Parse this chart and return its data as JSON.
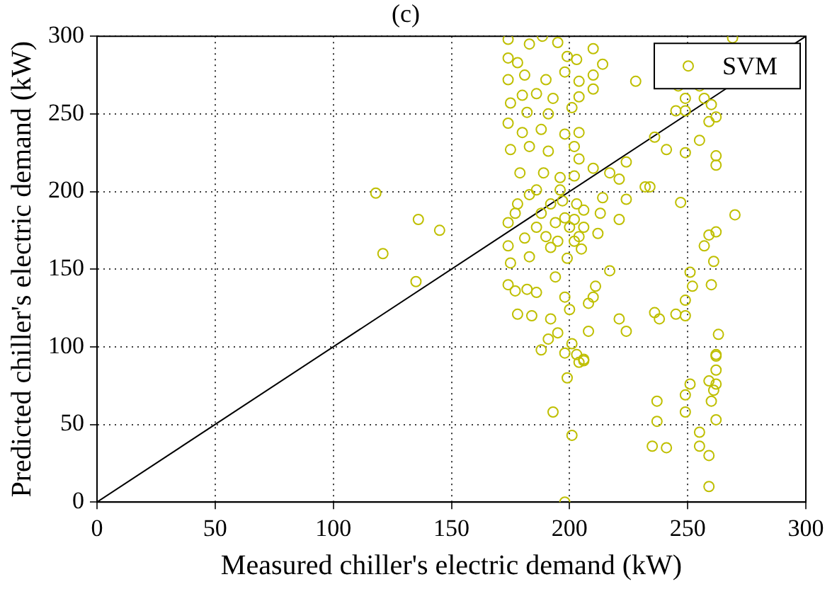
{
  "chart_data": {
    "type": "scatter",
    "title": "(c)",
    "xlabel": "Measured chiller's electric demand (kW)",
    "ylabel": "Predicted chiller's electric demand (kW)",
    "xlim": [
      0,
      300
    ],
    "ylim": [
      0,
      300
    ],
    "xticks": [
      0,
      50,
      100,
      150,
      200,
      250,
      300
    ],
    "yticks": [
      0,
      50,
      100,
      150,
      200,
      250,
      300
    ],
    "grid": true,
    "legend": "top right",
    "series": [
      {
        "type": "scatter",
        "name": "SVM",
        "color": "#bfbf00",
        "marker": "circle",
        "x": [
          174,
          188.5,
          195,
          183,
          199,
          210,
          214,
          203,
          269,
          228,
          246,
          255,
          174,
          178,
          174,
          181,
          190,
          198,
          210,
          204,
          180,
          186,
          193,
          204,
          210,
          175,
          182,
          191,
          201,
          249,
          257,
          245,
          249,
          260,
          262,
          259,
          174,
          180,
          188,
          198,
          204,
          236,
          255,
          241,
          249,
          262,
          262,
          175,
          183,
          191,
          202,
          204,
          210,
          224,
          217,
          221,
          234,
          179,
          189,
          196,
          202,
          118,
          136,
          145,
          121,
          135,
          270,
          247,
          232,
          214,
          224,
          221,
          213,
          262,
          259,
          257,
          261,
          251,
          252,
          260,
          249,
          217,
          211,
          210,
          208,
          221,
          224,
          236,
          238,
          245,
          249,
          263,
          262,
          208,
          199,
          200,
          198,
          194,
          186,
          182,
          177,
          174,
          178,
          184,
          192,
          195,
          191,
          188,
          201,
          198,
          203,
          206,
          204,
          174,
          178,
          183,
          188,
          192,
          196,
          202,
          206,
          204,
          174,
          181,
          186,
          190,
          194,
          198,
          200,
          175,
          183,
          192,
          195,
          205,
          212,
          202,
          177,
          186,
          203,
          197,
          206,
          199,
          193,
          201,
          198,
          237,
          237,
          235,
          241,
          251,
          249,
          249,
          255,
          255,
          259,
          259,
          262,
          260,
          261,
          259,
          262,
          262,
          262,
          206
        ],
        "values": [
          298,
          300,
          296,
          295,
          287,
          292,
          282,
          285,
          299,
          271,
          268,
          268,
          286,
          283,
          272,
          275,
          272,
          277,
          275,
          271,
          262,
          263,
          260,
          261,
          266,
          257,
          251,
          250,
          254,
          260,
          260,
          252,
          252,
          256,
          248,
          245,
          244,
          238,
          240,
          237,
          238,
          235,
          233,
          227,
          225,
          223,
          217,
          227,
          229,
          226,
          229,
          221,
          215,
          219,
          212,
          208,
          203,
          212,
          212,
          209,
          210,
          199,
          182,
          175,
          160,
          142,
          185,
          193,
          203,
          196,
          195,
          182,
          186,
          174,
          172,
          165,
          155,
          148,
          139,
          140,
          130,
          149,
          139,
          132,
          128,
          118,
          110,
          122,
          118,
          121,
          120,
          108,
          94,
          110,
          157,
          124,
          132,
          145,
          135,
          137,
          136,
          140,
          121,
          120,
          118,
          109,
          105,
          98,
          102,
          96,
          95,
          92,
          90,
          180,
          192,
          198,
          186,
          192,
          201,
          182,
          177,
          171,
          165,
          170,
          177,
          171,
          180,
          183,
          177,
          154,
          158,
          164,
          168,
          163,
          173,
          168,
          186,
          201,
          192,
          194,
          188,
          80,
          58,
          43,
          0,
          65,
          52,
          36,
          35,
          76,
          69,
          58,
          45,
          36,
          30,
          10,
          53,
          65,
          72,
          78,
          76,
          85,
          95,
          91
        ]
      },
      {
        "type": "line",
        "color": "#000000",
        "marker": "none",
        "x": [
          0,
          300
        ],
        "values": [
          0,
          300
        ]
      }
    ]
  }
}
